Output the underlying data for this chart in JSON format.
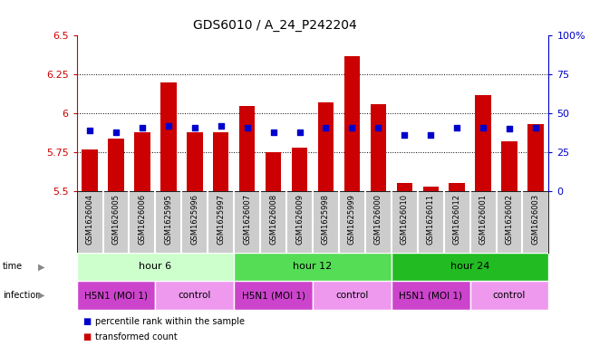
{
  "title": "GDS6010 / A_24_P242204",
  "samples": [
    "GSM1626004",
    "GSM1626005",
    "GSM1626006",
    "GSM1625995",
    "GSM1625996",
    "GSM1625997",
    "GSM1626007",
    "GSM1626008",
    "GSM1626009",
    "GSM1625998",
    "GSM1625999",
    "GSM1626000",
    "GSM1626010",
    "GSM1626011",
    "GSM1626012",
    "GSM1626001",
    "GSM1626002",
    "GSM1626003"
  ],
  "bar_values": [
    5.77,
    5.84,
    5.88,
    6.2,
    5.88,
    5.88,
    6.05,
    5.75,
    5.78,
    6.07,
    6.37,
    6.06,
    5.55,
    5.53,
    5.55,
    6.12,
    5.82,
    5.93
  ],
  "dot_values": [
    5.89,
    5.88,
    5.91,
    5.92,
    5.91,
    5.92,
    5.91,
    5.88,
    5.88,
    5.91,
    5.91,
    5.91,
    5.86,
    5.86,
    5.91,
    5.91,
    5.9,
    5.91
  ],
  "bar_bottom": 5.5,
  "ylim": [
    5.5,
    6.5
  ],
  "yticks": [
    5.5,
    5.75,
    6.0,
    6.25,
    6.5
  ],
  "ytick_labels": [
    "5.5",
    "5.75",
    "6",
    "6.25",
    "6.5"
  ],
  "right_yticks": [
    0,
    25,
    50,
    75,
    100
  ],
  "right_ytick_labels": [
    "0",
    "25",
    "50",
    "75",
    "100%"
  ],
  "grid_values": [
    5.75,
    6.0,
    6.25
  ],
  "bar_color": "#cc0000",
  "dot_color": "#0000cc",
  "axis_color": "#cc0000",
  "right_axis_color": "#0000cc",
  "sample_label_bg": "#cccccc",
  "sample_label_border": "#ffffff",
  "time_groups": [
    {
      "label": "hour 6",
      "start": 0,
      "end": 6,
      "color": "#ccffcc"
    },
    {
      "label": "hour 12",
      "start": 6,
      "end": 12,
      "color": "#55dd55"
    },
    {
      "label": "hour 24",
      "start": 12,
      "end": 18,
      "color": "#22bb22"
    }
  ],
  "infection_groups": [
    {
      "label": "H5N1 (MOI 1)",
      "start": 0,
      "end": 3,
      "color": "#cc44cc"
    },
    {
      "label": "control",
      "start": 3,
      "end": 6,
      "color": "#ee99ee"
    },
    {
      "label": "H5N1 (MOI 1)",
      "start": 6,
      "end": 9,
      "color": "#cc44cc"
    },
    {
      "label": "control",
      "start": 9,
      "end": 12,
      "color": "#ee99ee"
    },
    {
      "label": "H5N1 (MOI 1)",
      "start": 12,
      "end": 15,
      "color": "#cc44cc"
    },
    {
      "label": "control",
      "start": 15,
      "end": 18,
      "color": "#ee99ee"
    }
  ],
  "legend_items": [
    {
      "label": "transformed count",
      "color": "#cc0000"
    },
    {
      "label": "percentile rank within the sample",
      "color": "#0000cc"
    }
  ],
  "background_color": "#ffffff"
}
